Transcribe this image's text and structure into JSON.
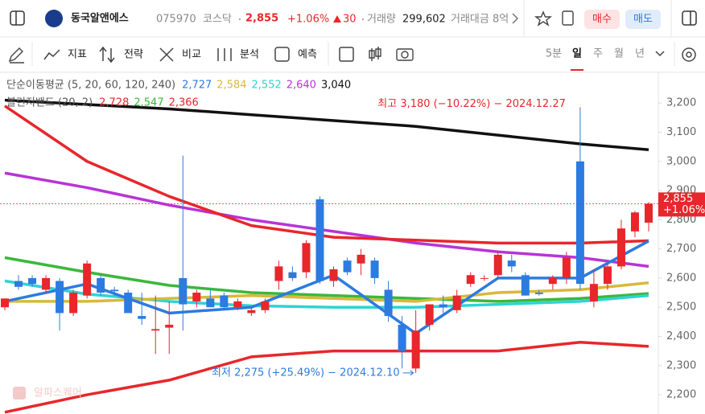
{
  "header": {
    "name": "동국알앤에스",
    "code": "075970",
    "market": "코스닥",
    "price": "2,855",
    "change_pct": "+1.06%",
    "change": "30",
    "volume_label": "거래량",
    "volume": "299,602",
    "amount": "거래대금 8억",
    "buy": "매수",
    "sell": "매도"
  },
  "toolbar": {
    "tools": [
      "지표",
      "전략",
      "비교",
      "분석",
      "예측"
    ],
    "periods": [
      "5분",
      "일",
      "주",
      "월",
      "년"
    ],
    "active_period": 1
  },
  "legend": [
    {
      "label": "단순이동평균 (5, 20, 60, 120, 240)",
      "items": [
        {
          "text": "2,727",
          "color": "#2c7be0"
        },
        {
          "text": "2,584",
          "color": "#d8b93a"
        },
        {
          "text": "2,552",
          "color": "#2fd3d3"
        },
        {
          "text": "2,640",
          "color": "#b933d6"
        },
        {
          "text": "3,040",
          "color": "#111111"
        }
      ]
    },
    {
      "label": "볼린저밴드 (20, 2)",
      "items": [
        {
          "text": "2,728",
          "color": "#e8262b"
        },
        {
          "text": "2,547",
          "color": "#3bb83b"
        },
        {
          "text": "2,366",
          "color": "#e8262b"
        }
      ]
    }
  ],
  "chart_data": {
    "type": "candlestick",
    "up_color": "#e8262b",
    "down_color": "#2c7be0",
    "ylim": [
      2134,
      3308
    ],
    "xlim": [
      0,
      47
    ],
    "yticks": [
      {
        "value": 2200,
        "label": "2,200"
      },
      {
        "value": 2300,
        "label": "2,300"
      },
      {
        "value": 2400,
        "label": "2,400"
      },
      {
        "value": 2500,
        "label": "2,500"
      },
      {
        "value": 2600,
        "label": "2,600"
      },
      {
        "value": 2700,
        "label": "2,700"
      },
      {
        "value": 2800,
        "label": "2,800"
      },
      {
        "value": 2900,
        "label": "2,900"
      },
      {
        "value": 3000,
        "label": "3,000"
      },
      {
        "value": 3100,
        "label": "3,100"
      },
      {
        "value": 3200,
        "label": "3,200"
      }
    ],
    "open": [
      2500,
      2590,
      2600,
      2560,
      2590,
      2480,
      2540,
      2600,
      2560,
      2550,
      2470,
      2420,
      2430,
      2600,
      2520,
      2530,
      2540,
      2500,
      2480,
      2490,
      2590,
      2620,
      2620,
      2870,
      2590,
      2660,
      2650,
      2660,
      2560,
      2440,
      2290,
      2440,
      2510,
      2490,
      2580,
      2600,
      2610,
      2660,
      2610,
      2550,
      2580,
      2600,
      3000,
      2520,
      2580,
      2640,
      2760,
      2790
    ],
    "high": [
      2530,
      2610,
      2610,
      2610,
      2600,
      2560,
      2660,
      2610,
      2570,
      2560,
      2550,
      2540,
      2520,
      3020,
      2560,
      2560,
      2550,
      2530,
      2500,
      2530,
      2660,
      2640,
      2730,
      2880,
      2640,
      2670,
      2700,
      2670,
      2590,
      2470,
      2490,
      2510,
      2540,
      2560,
      2620,
      2610,
      2690,
      2680,
      2620,
      2560,
      2610,
      2690,
      3180,
      2630,
      2650,
      2800,
      2830,
      2860
    ],
    "low": [
      2490,
      2560,
      2570,
      2550,
      2420,
      2470,
      2530,
      2540,
      2540,
      2480,
      2440,
      2340,
      2340,
      2420,
      2500,
      2500,
      2490,
      2490,
      2470,
      2480,
      2560,
      2590,
      2600,
      2580,
      2570,
      2610,
      2610,
      2580,
      2450,
      2290,
      2275,
      2420,
      2480,
      2480,
      2570,
      2590,
      2600,
      2620,
      2540,
      2540,
      2560,
      2580,
      2560,
      2500,
      2560,
      2630,
      2740,
      2760
    ],
    "close": [
      2530,
      2570,
      2580,
      2600,
      2480,
      2550,
      2650,
      2550,
      2555,
      2480,
      2460,
      2425,
      2440,
      2510,
      2550,
      2500,
      2500,
      2520,
      2490,
      2520,
      2640,
      2600,
      2720,
      2590,
      2630,
      2620,
      2680,
      2600,
      2470,
      2350,
      2420,
      2510,
      2500,
      2540,
      2610,
      2600,
      2680,
      2640,
      2540,
      2545,
      2600,
      2670,
      2580,
      2580,
      2640,
      2770,
      2825,
      2855
    ],
    "lines": [
      {
        "color": "#111111",
        "x": [
          0,
          6,
          12,
          18,
          24,
          30,
          36,
          42,
          47
        ],
        "values": [
          3210,
          3195,
          3180,
          3160,
          3140,
          3120,
          3090,
          3060,
          3040
        ]
      },
      {
        "color": "#b933d6",
        "x": [
          0,
          6,
          12,
          18,
          24,
          30,
          36,
          42,
          47
        ],
        "values": [
          2960,
          2910,
          2850,
          2800,
          2760,
          2720,
          2690,
          2670,
          2640
        ]
      },
      {
        "color": "#e8262b",
        "x": [
          0,
          6,
          12,
          18,
          24,
          30,
          36,
          42,
          47
        ],
        "values": [
          3190,
          3000,
          2880,
          2780,
          2740,
          2730,
          2720,
          2720,
          2728
        ]
      },
      {
        "color": "#e8262b",
        "x": [
          0,
          6,
          12,
          18,
          24,
          30,
          36,
          42,
          47
        ],
        "values": [
          2140,
          2200,
          2250,
          2330,
          2350,
          2350,
          2350,
          2380,
          2366
        ]
      },
      {
        "color": "#3bb83b",
        "x": [
          0,
          6,
          12,
          18,
          24,
          30,
          36,
          42,
          47
        ],
        "values": [
          2670,
          2620,
          2575,
          2550,
          2540,
          2530,
          2520,
          2530,
          2547
        ]
      },
      {
        "color": "#2fd3d3",
        "x": [
          0,
          6,
          12,
          18,
          24,
          30,
          36,
          42,
          47
        ],
        "values": [
          2590,
          2545,
          2520,
          2505,
          2500,
          2500,
          2510,
          2520,
          2540
        ]
      },
      {
        "color": "#d8b93a",
        "x": [
          0,
          6,
          12,
          18,
          24,
          30,
          36,
          42,
          47
        ],
        "values": [
          2520,
          2520,
          2530,
          2540,
          2530,
          2520,
          2550,
          2560,
          2584
        ]
      },
      {
        "color": "#2c7be0",
        "x": [
          0,
          6,
          12,
          18,
          24,
          30,
          36,
          42,
          47
        ],
        "values": [
          2520,
          2580,
          2480,
          2500,
          2610,
          2410,
          2600,
          2600,
          2727
        ]
      }
    ],
    "current": {
      "value": 2855,
      "label": "2,855",
      "sub": "+1.06%"
    },
    "annotations": [
      {
        "text": "최고 3,180 (−10.22%) − 2024.12.27",
        "x": 42,
        "value": 3180,
        "color": "#e8262b"
      },
      {
        "text": "최저 2,275 (+25.49%) − 2024.12.10",
        "x": 30,
        "value": 2275,
        "color": "#2c7be0"
      }
    ]
  },
  "watermark": "알파스퀘어"
}
